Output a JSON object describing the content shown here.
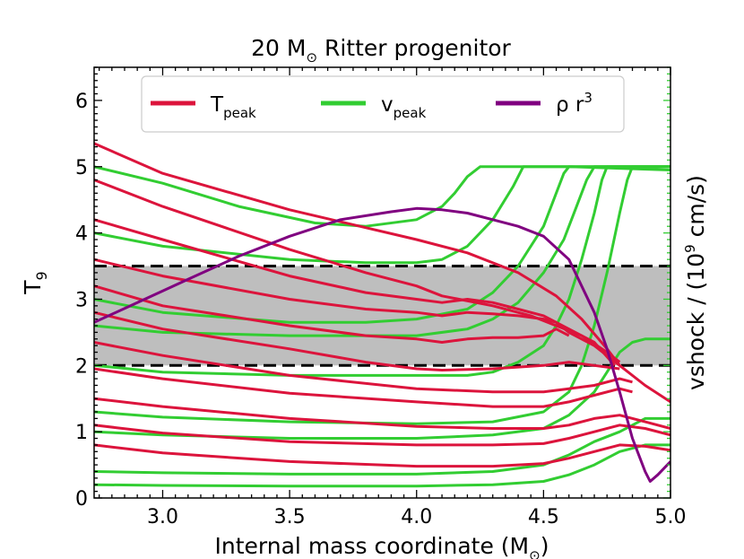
{
  "chart_data": {
    "type": "line",
    "title": {
      "prefix": "20 M",
      "sub": "⊙",
      "suffix": " Ritter progenitor"
    },
    "xlabel": {
      "prefix": "Internal mass coordinate (M",
      "sub": "⊙",
      "suffix": ")"
    },
    "ylabel_left": {
      "base": "T",
      "sub": "9"
    },
    "ylabel_right": {
      "prefix": "vshock / (10",
      "sup": "9",
      "suffix": " cm/s)"
    },
    "xlim": [
      2.73,
      5.0
    ],
    "ylim": [
      0,
      6.5
    ],
    "xticks": [
      "3.0",
      "3.5",
      "4.0",
      "4.5",
      "5.0"
    ],
    "xtick_values": [
      3.0,
      3.5,
      4.0,
      4.5,
      5.0
    ],
    "yticks": [
      "0",
      "1",
      "2",
      "3",
      "4",
      "5",
      "6"
    ],
    "ytick_values": [
      0,
      1,
      2,
      3,
      4,
      5,
      6
    ],
    "shaded_band": {
      "y_min": 2.0,
      "y_max": 3.5,
      "color": "#bebebe",
      "edge_style": "dashed",
      "edge_color": "#000000"
    },
    "colors": {
      "tpeak": "#dc143c",
      "vpeak": "#32cd32",
      "rho": "#800080"
    },
    "legend": {
      "position": "top-center",
      "entries": [
        {
          "base": "T",
          "sub": "peak",
          "color": "#dc143c"
        },
        {
          "base": "v",
          "sub": "peak",
          "color": "#32cd32"
        },
        {
          "base": "ρ r",
          "sup": "3",
          "color": "#800080"
        }
      ]
    },
    "series": [
      {
        "name": "T_peak",
        "group": "tpeak",
        "x": [
          2.73,
          3.0,
          3.5,
          4.0,
          4.2,
          4.4,
          4.55,
          4.65,
          4.75,
          4.8,
          4.9,
          5.0
        ],
        "y": [
          5.35,
          4.9,
          4.35,
          3.9,
          3.7,
          3.4,
          3.05,
          2.7,
          2.25,
          2.0,
          1.7,
          1.45
        ]
      },
      {
        "name": "T_peak",
        "group": "tpeak",
        "x": [
          2.73,
          3.0,
          3.5,
          3.8,
          4.0,
          4.1,
          4.3,
          4.45,
          4.55,
          4.65,
          4.75,
          4.8
        ],
        "y": [
          4.8,
          4.4,
          3.75,
          3.4,
          3.2,
          3.05,
          2.9,
          2.75,
          2.6,
          2.45,
          2.2,
          2.05
        ]
      },
      {
        "name": "T_peak",
        "group": "tpeak",
        "x": [
          2.73,
          3.0,
          3.5,
          3.8,
          4.0,
          4.1,
          4.2,
          4.3,
          4.4,
          4.5,
          4.6,
          4.7,
          4.78
        ],
        "y": [
          4.2,
          3.9,
          3.35,
          3.1,
          3.0,
          2.95,
          3.0,
          2.95,
          2.85,
          2.75,
          2.55,
          2.35,
          2.0
        ]
      },
      {
        "name": "T_peak",
        "group": "tpeak",
        "x": [
          2.73,
          3.0,
          3.5,
          3.8,
          4.0,
          4.1,
          4.2,
          4.3,
          4.4,
          4.5,
          4.55,
          4.6,
          4.7,
          4.8
        ],
        "y": [
          3.6,
          3.35,
          3.0,
          2.85,
          2.8,
          2.75,
          2.8,
          2.78,
          2.75,
          2.7,
          2.65,
          2.5,
          2.3,
          2.0
        ]
      },
      {
        "name": "T_peak",
        "group": "tpeak",
        "x": [
          2.73,
          3.0,
          3.5,
          3.8,
          4.0,
          4.1,
          4.2,
          4.3,
          4.4,
          4.5,
          4.55,
          4.6
        ],
        "y": [
          3.2,
          2.9,
          2.6,
          2.45,
          2.4,
          2.35,
          2.4,
          2.42,
          2.42,
          2.45,
          2.55,
          2.45
        ]
      },
      {
        "name": "T_peak",
        "group": "tpeak",
        "x": [
          2.73,
          3.0,
          3.5,
          3.8,
          4.0,
          4.1,
          4.3,
          4.5,
          4.6,
          4.7,
          4.8
        ],
        "y": [
          2.8,
          2.55,
          2.25,
          2.05,
          1.95,
          1.93,
          1.95,
          2.0,
          2.05,
          2.0,
          1.95
        ]
      },
      {
        "name": "T_peak",
        "group": "tpeak",
        "x": [
          2.73,
          3.0,
          3.5,
          4.0,
          4.3,
          4.5,
          4.6,
          4.7,
          4.8,
          4.85
        ],
        "y": [
          2.35,
          2.15,
          1.85,
          1.65,
          1.6,
          1.6,
          1.65,
          1.7,
          1.8,
          1.75
        ]
      },
      {
        "name": "T_peak",
        "group": "tpeak",
        "x": [
          2.73,
          3.0,
          3.5,
          4.0,
          4.3,
          4.5,
          4.6,
          4.7,
          4.8,
          4.85
        ],
        "y": [
          1.95,
          1.8,
          1.58,
          1.45,
          1.38,
          1.38,
          1.45,
          1.55,
          1.65,
          1.6
        ]
      },
      {
        "name": "T_peak",
        "group": "tpeak",
        "x": [
          2.73,
          3.0,
          3.5,
          4.0,
          4.3,
          4.5,
          4.6,
          4.7,
          4.8,
          4.9,
          5.0
        ],
        "y": [
          1.5,
          1.38,
          1.2,
          1.08,
          1.05,
          1.05,
          1.1,
          1.2,
          1.25,
          1.15,
          1.05
        ]
      },
      {
        "name": "T_peak",
        "group": "tpeak",
        "x": [
          2.73,
          3.0,
          3.5,
          4.0,
          4.3,
          4.5,
          4.6,
          4.7,
          4.8,
          4.9,
          5.0
        ],
        "y": [
          1.1,
          0.98,
          0.85,
          0.8,
          0.8,
          0.82,
          0.9,
          1.0,
          1.1,
          1.05,
          0.95
        ]
      },
      {
        "name": "T_peak",
        "group": "tpeak",
        "x": [
          2.73,
          3.0,
          3.5,
          4.0,
          4.3,
          4.5,
          4.6,
          4.7,
          4.8,
          4.9,
          5.0
        ],
        "y": [
          0.8,
          0.68,
          0.55,
          0.48,
          0.48,
          0.52,
          0.6,
          0.7,
          0.8,
          0.78,
          0.72
        ]
      },
      {
        "name": "v_peak",
        "group": "vpeak",
        "x": [
          2.73,
          3.0,
          3.3,
          3.6,
          3.8,
          4.0,
          4.1,
          4.15,
          4.2,
          4.25,
          4.6,
          5.0
        ],
        "y": [
          5.0,
          4.75,
          4.4,
          4.15,
          4.1,
          4.2,
          4.4,
          4.6,
          4.85,
          5.0,
          5.0,
          4.95
        ]
      },
      {
        "name": "v_peak",
        "group": "vpeak",
        "x": [
          2.73,
          3.0,
          3.5,
          3.8,
          4.0,
          4.1,
          4.2,
          4.3,
          4.38,
          4.42,
          4.45,
          5.0
        ],
        "y": [
          4.0,
          3.8,
          3.6,
          3.55,
          3.55,
          3.6,
          3.8,
          4.2,
          4.7,
          5.0,
          5.0,
          5.0
        ]
      },
      {
        "name": "v_peak",
        "group": "vpeak",
        "x": [
          2.73,
          3.0,
          3.5,
          3.8,
          4.0,
          4.2,
          4.3,
          4.4,
          4.5,
          4.55,
          4.58,
          4.6,
          5.0
        ],
        "y": [
          3.0,
          2.8,
          2.65,
          2.65,
          2.7,
          2.85,
          3.1,
          3.5,
          4.1,
          4.6,
          4.9,
          5.0,
          5.0
        ]
      },
      {
        "name": "v_peak",
        "group": "vpeak",
        "x": [
          2.73,
          3.0,
          3.5,
          4.0,
          4.2,
          4.3,
          4.4,
          4.5,
          4.58,
          4.63,
          4.67,
          4.7,
          5.0
        ],
        "y": [
          2.6,
          2.5,
          2.45,
          2.45,
          2.55,
          2.7,
          2.95,
          3.4,
          3.9,
          4.4,
          4.8,
          5.0,
          5.0
        ]
      },
      {
        "name": "v_peak",
        "group": "vpeak",
        "x": [
          2.73,
          3.0,
          3.5,
          4.0,
          4.2,
          4.3,
          4.4,
          4.5,
          4.55,
          4.6,
          4.65,
          4.7,
          4.73,
          4.75,
          5.0
        ],
        "y": [
          2.0,
          1.9,
          1.85,
          1.85,
          1.85,
          1.9,
          2.05,
          2.3,
          2.6,
          3.0,
          3.6,
          4.3,
          4.8,
          5.0,
          5.0
        ]
      },
      {
        "name": "v_peak",
        "group": "vpeak",
        "x": [
          2.73,
          3.0,
          3.5,
          4.0,
          4.3,
          4.5,
          4.6,
          4.65,
          4.7,
          4.75,
          4.8,
          4.83,
          4.85,
          5.0
        ],
        "y": [
          1.3,
          1.22,
          1.15,
          1.12,
          1.15,
          1.3,
          1.6,
          2.0,
          2.6,
          3.4,
          4.3,
          4.8,
          5.0,
          5.0
        ]
      },
      {
        "name": "v_peak",
        "group": "vpeak",
        "x": [
          2.73,
          3.0,
          3.5,
          4.0,
          4.3,
          4.5,
          4.6,
          4.7,
          4.75,
          4.8,
          4.85,
          4.9,
          5.0
        ],
        "y": [
          1.0,
          0.95,
          0.9,
          0.9,
          0.95,
          1.05,
          1.25,
          1.6,
          1.9,
          2.2,
          2.35,
          2.4,
          2.4
        ]
      },
      {
        "name": "v_peak",
        "group": "vpeak",
        "x": [
          2.73,
          3.0,
          3.5,
          4.0,
          4.3,
          4.5,
          4.6,
          4.7,
          4.8,
          4.85,
          4.9,
          5.0
        ],
        "y": [
          0.4,
          0.38,
          0.36,
          0.36,
          0.4,
          0.5,
          0.65,
          0.85,
          1.0,
          1.1,
          1.2,
          1.2
        ]
      },
      {
        "name": "v_peak",
        "group": "vpeak",
        "x": [
          2.73,
          3.0,
          3.5,
          4.0,
          4.3,
          4.5,
          4.6,
          4.7,
          4.8,
          4.9,
          5.0
        ],
        "y": [
          0.2,
          0.19,
          0.18,
          0.18,
          0.2,
          0.25,
          0.35,
          0.5,
          0.7,
          0.8,
          0.8
        ]
      },
      {
        "name": "rho_r3",
        "group": "rho",
        "x": [
          2.73,
          2.9,
          3.1,
          3.3,
          3.5,
          3.7,
          3.9,
          4.0,
          4.1,
          4.2,
          4.3,
          4.4,
          4.5,
          4.6,
          4.7,
          4.75,
          4.8,
          4.85,
          4.9,
          4.92,
          4.95,
          5.0
        ],
        "y": [
          2.65,
          2.95,
          3.3,
          3.65,
          3.95,
          4.2,
          4.32,
          4.37,
          4.35,
          4.3,
          4.2,
          4.1,
          3.95,
          3.6,
          2.8,
          2.25,
          1.6,
          0.9,
          0.4,
          0.25,
          0.35,
          0.55
        ]
      }
    ]
  }
}
